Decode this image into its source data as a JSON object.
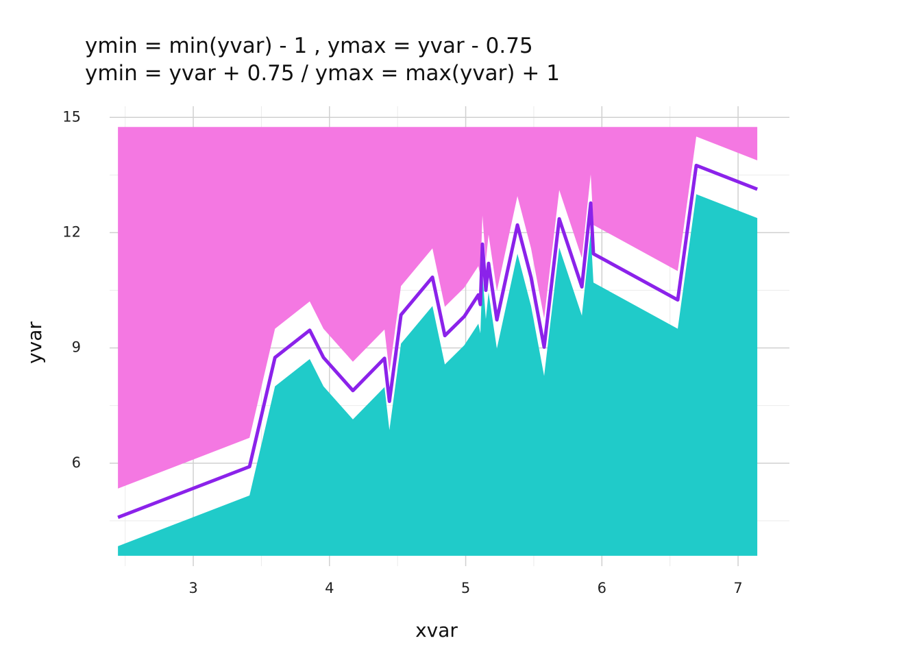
{
  "chart_data": {
    "type": "line",
    "title": [
      "ymin = min(yvar) - 1 , ymax = yvar - 0.75",
      "ymin = yvar + 0.75 / ymax = max(yvar) + 1"
    ],
    "x_label": "xvar",
    "y_label": "yvar",
    "x": [
      2.447,
      3.413,
      3.6,
      3.855,
      3.956,
      4.172,
      4.404,
      4.44,
      4.525,
      4.756,
      4.847,
      4.99,
      5.093,
      5.108,
      5.123,
      5.148,
      5.168,
      5.229,
      5.38,
      5.48,
      5.576,
      5.687,
      5.853,
      5.918,
      5.938,
      6.557,
      6.693,
      7.141
    ],
    "values": [
      4.59,
      5.91,
      8.75,
      9.46,
      8.75,
      7.89,
      8.73,
      7.61,
      9.86,
      10.84,
      9.32,
      9.82,
      10.38,
      10.13,
      11.7,
      10.5,
      11.2,
      9.73,
      12.2,
      10.84,
      9.02,
      12.36,
      10.59,
      12.77,
      11.45,
      10.25,
      13.75,
      13.13
    ],
    "color": "#8b22ea",
    "ribbons": [
      {
        "color": "#20cbc9",
        "ymin": [
          3.59,
          3.59,
          3.59,
          3.59,
          3.59,
          3.59,
          3.59,
          3.59,
          3.59,
          3.59,
          3.59,
          3.59,
          3.59,
          3.59,
          3.59,
          3.59,
          3.59,
          3.59,
          3.59,
          3.59,
          3.59,
          3.59,
          3.59,
          3.59,
          3.59,
          3.59,
          3.59,
          3.59
        ],
        "ymax": [
          3.84,
          5.16,
          8.0,
          8.71,
          8.0,
          7.14,
          7.98,
          6.86,
          9.11,
          10.09,
          8.57,
          9.07,
          9.63,
          9.38,
          10.95,
          9.75,
          10.45,
          8.98,
          11.45,
          10.09,
          8.27,
          11.61,
          9.84,
          12.02,
          10.7,
          9.5,
          13.0,
          12.38
        ]
      },
      {
        "color": "#f478e2",
        "ymin": [
          5.34,
          6.66,
          9.5,
          10.21,
          9.5,
          8.64,
          9.48,
          8.36,
          10.61,
          11.59,
          10.07,
          10.57,
          11.13,
          10.88,
          12.45,
          11.25,
          11.95,
          10.48,
          12.95,
          11.59,
          9.77,
          13.11,
          11.34,
          13.52,
          12.2,
          11.0,
          14.5,
          13.88
        ],
        "ymax": [
          14.75,
          14.75,
          14.75,
          14.75,
          14.75,
          14.75,
          14.75,
          14.75,
          14.75,
          14.75,
          14.75,
          14.75,
          14.75,
          14.75,
          14.75,
          14.75,
          14.75,
          14.75,
          14.75,
          14.75,
          14.75,
          14.75,
          14.75,
          14.75,
          14.75,
          14.75,
          14.75,
          14.75
        ]
      }
    ],
    "xlim": [
      2.386,
      7.377
    ],
    "ylim": [
      3.32,
      15.29
    ],
    "xticks": [
      3,
      4,
      5,
      6,
      7
    ],
    "yticks": [
      6,
      9,
      12,
      15
    ],
    "xminor": [
      2.5,
      3.5,
      4.5,
      5.5,
      6.5
    ],
    "yminor": [
      4.5,
      7.5,
      10.5,
      13.5
    ],
    "grid": true
  }
}
